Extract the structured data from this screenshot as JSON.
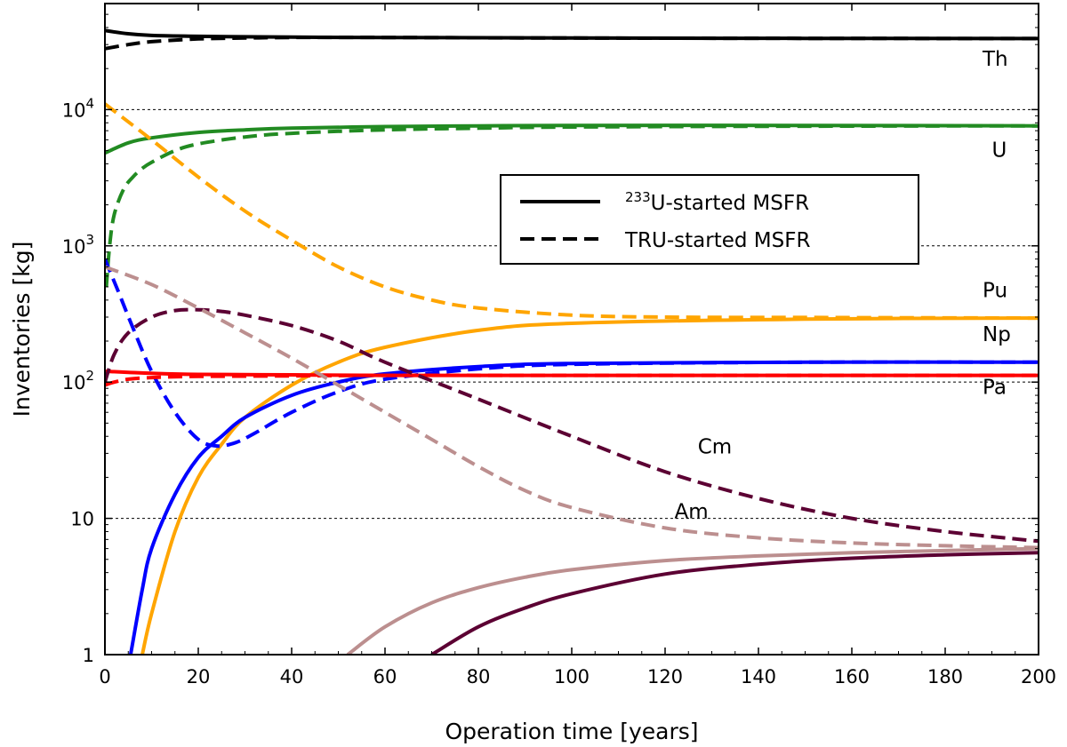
{
  "chart_data": {
    "type": "line",
    "title": "",
    "xlabel": "Operation time [years]",
    "ylabel": "Inventories [kg]",
    "xlim": [
      0,
      200
    ],
    "ylim": [
      1,
      60000
    ],
    "yscale": "log",
    "x_ticks": [
      0,
      20,
      40,
      60,
      80,
      100,
      120,
      140,
      160,
      180,
      200
    ],
    "y_ticks": [
      {
        "value": 1,
        "base": "1",
        "exp": ""
      },
      {
        "value": 10,
        "base": "10",
        "exp": ""
      },
      {
        "value": 100,
        "base": "10",
        "exp": "2"
      },
      {
        "value": 1000,
        "base": "10",
        "exp": "3"
      },
      {
        "value": 10000,
        "base": "10",
        "exp": "4"
      }
    ],
    "grid": "horizontal dotted at decades",
    "legend": {
      "position": "center-right",
      "entries": [
        {
          "style": "solid",
          "sup": "233",
          "text": "U-started MSFR"
        },
        {
          "style": "dashed",
          "sup": "",
          "text": "TRU-started MSFR"
        }
      ]
    },
    "series": [
      {
        "element": "Th",
        "case": "233U",
        "style": "solid",
        "color": "#000000",
        "x": [
          0,
          5,
          10,
          20,
          40,
          60,
          100,
          150,
          200
        ],
        "y": [
          38000,
          36000,
          35000,
          34500,
          34000,
          33800,
          33500,
          33300,
          33200
        ]
      },
      {
        "element": "Th",
        "case": "TRU",
        "style": "dashed",
        "color": "#000000",
        "x": [
          0,
          5,
          10,
          20,
          30,
          40,
          60,
          100,
          150,
          200
        ],
        "y": [
          28000,
          30000,
          31500,
          33000,
          33500,
          33800,
          33800,
          33500,
          33300,
          33200
        ]
      },
      {
        "element": "U",
        "case": "233U",
        "style": "solid",
        "color": "#228b22",
        "x": [
          0,
          5,
          10,
          20,
          30,
          40,
          60,
          80,
          100,
          150,
          200
        ],
        "y": [
          4800,
          5700,
          6200,
          6800,
          7100,
          7300,
          7500,
          7600,
          7650,
          7650,
          7600
        ]
      },
      {
        "element": "U",
        "case": "TRU",
        "style": "dashed",
        "color": "#228b22",
        "x": [
          0.3,
          1,
          2,
          4,
          6,
          8,
          10,
          15,
          20,
          30,
          40,
          60,
          80,
          100,
          150,
          200
        ],
        "y": [
          500,
          1000,
          1700,
          2600,
          3200,
          3700,
          4100,
          5000,
          5600,
          6300,
          6700,
          7100,
          7300,
          7450,
          7550,
          7600
        ]
      },
      {
        "element": "Pu",
        "case": "233U",
        "style": "solid",
        "color": "#ffa500",
        "x": [
          8,
          10,
          15,
          20,
          25,
          30,
          40,
          50,
          60,
          80,
          100,
          150,
          200
        ],
        "y": [
          1,
          2,
          8,
          20,
          35,
          55,
          95,
          140,
          180,
          240,
          270,
          290,
          295
        ]
      },
      {
        "element": "Pu",
        "case": "TRU",
        "style": "dashed",
        "color": "#ffa500",
        "x": [
          0,
          10,
          20,
          30,
          40,
          50,
          60,
          70,
          80,
          100,
          120,
          150,
          200
        ],
        "y": [
          11000,
          6000,
          3200,
          1800,
          1100,
          700,
          500,
          400,
          350,
          310,
          300,
          298,
          295
        ]
      },
      {
        "element": "Np",
        "case": "233U",
        "style": "solid",
        "color": "#0000ff",
        "x": [
          5.5,
          8,
          10,
          15,
          20,
          25,
          30,
          40,
          50,
          60,
          80,
          100,
          150,
          200
        ],
        "y": [
          1,
          3,
          6,
          15,
          28,
          40,
          55,
          80,
          100,
          115,
          130,
          137,
          140,
          140
        ]
      },
      {
        "element": "Np",
        "case": "TRU",
        "style": "dashed",
        "color": "#0000ff",
        "x": [
          0,
          3,
          6,
          10,
          15,
          20,
          24,
          28,
          32,
          40,
          50,
          60,
          80,
          100,
          150,
          200
        ],
        "y": [
          800,
          450,
          250,
          120,
          60,
          38,
          34,
          36,
          42,
          60,
          85,
          105,
          125,
          135,
          140,
          140
        ]
      },
      {
        "element": "Pa",
        "case": "233U",
        "style": "solid",
        "color": "#ff0000",
        "x": [
          0,
          5,
          10,
          20,
          40,
          60,
          100,
          150,
          200
        ],
        "y": [
          120,
          118,
          116,
          114,
          113,
          112,
          112,
          112,
          112
        ]
      },
      {
        "element": "Pa",
        "case": "TRU",
        "style": "dashed",
        "color": "#ff0000",
        "x": [
          0,
          2,
          5,
          10,
          20,
          40,
          60,
          100,
          150,
          200
        ],
        "y": [
          95,
          100,
          105,
          108,
          110,
          111,
          112,
          112,
          112,
          112
        ]
      },
      {
        "element": "Cm",
        "case": "233U",
        "style": "solid",
        "color": "#5c0033",
        "x": [
          70,
          80,
          90,
          100,
          120,
          140,
          160,
          180,
          200
        ],
        "y": [
          1,
          1.6,
          2.2,
          2.8,
          3.9,
          4.6,
          5.1,
          5.4,
          5.6
        ]
      },
      {
        "element": "Cm",
        "case": "TRU",
        "style": "dashed",
        "color": "#5c0033",
        "x": [
          0,
          2,
          5,
          10,
          15,
          20,
          25,
          30,
          40,
          50,
          60,
          80,
          100,
          120,
          140,
          160,
          180,
          200
        ],
        "y": [
          100,
          160,
          230,
          300,
          335,
          340,
          330,
          310,
          260,
          200,
          140,
          75,
          40,
          22,
          14,
          10,
          8,
          6.8
        ]
      },
      {
        "element": "Am",
        "case": "233U",
        "style": "solid",
        "color": "#bc8f8f",
        "x": [
          52,
          60,
          70,
          80,
          90,
          100,
          120,
          140,
          160,
          180,
          200
        ],
        "y": [
          1,
          1.6,
          2.4,
          3.1,
          3.7,
          4.2,
          4.9,
          5.3,
          5.6,
          5.8,
          6
        ]
      },
      {
        "element": "Am",
        "case": "TRU",
        "style": "dashed",
        "color": "#bc8f8f",
        "x": [
          0,
          10,
          20,
          30,
          40,
          50,
          60,
          70,
          80,
          90,
          100,
          120,
          140,
          160,
          180,
          200
        ],
        "y": [
          700,
          520,
          350,
          230,
          150,
          95,
          60,
          38,
          24,
          16,
          12,
          8.5,
          7.2,
          6.6,
          6.3,
          6.1
        ]
      }
    ],
    "annotations": [
      {
        "text": "Th",
        "x": 188,
        "y": 21000
      },
      {
        "text": "U",
        "x": 190,
        "y": 4500
      },
      {
        "text": "Pu",
        "x": 188,
        "y": 420
      },
      {
        "text": "Np",
        "x": 188,
        "y": 200
      },
      {
        "text": "Pa",
        "x": 188,
        "y": 82
      },
      {
        "text": "Cm",
        "x": 127,
        "y": 30
      },
      {
        "text": "Am",
        "x": 122,
        "y": 10
      }
    ]
  }
}
